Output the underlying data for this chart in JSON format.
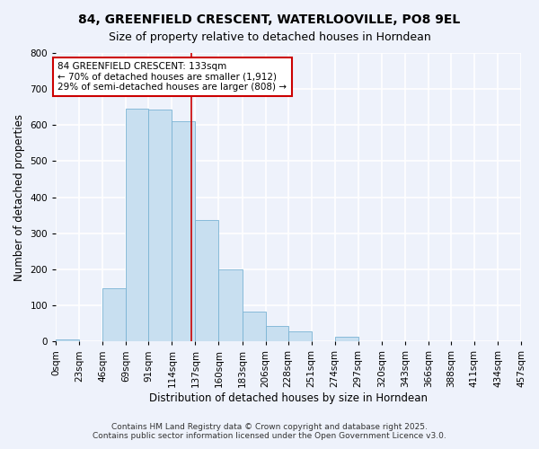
{
  "title": "84, GREENFIELD CRESCENT, WATERLOOVILLE, PO8 9EL",
  "subtitle": "Size of property relative to detached houses in Horndean",
  "xlabel": "Distribution of detached houses by size in Horndean",
  "ylabel": "Number of detached properties",
  "bar_edges": [
    0,
    23,
    46,
    69,
    91,
    114,
    137,
    160,
    183,
    206,
    228,
    251,
    274,
    297,
    320,
    343,
    366,
    388,
    411,
    434,
    457
  ],
  "bar_heights": [
    5,
    0,
    148,
    645,
    643,
    612,
    338,
    200,
    83,
    43,
    27,
    0,
    12,
    0,
    0,
    0,
    0,
    0,
    0,
    0
  ],
  "bar_color": "#c8dff0",
  "bar_edge_color": "#7ab3d4",
  "vline_x": 133,
  "vline_color": "#cc0000",
  "ylim": [
    0,
    800
  ],
  "yticks": [
    0,
    100,
    200,
    300,
    400,
    500,
    600,
    700,
    800
  ],
  "xtick_labels": [
    "0sqm",
    "23sqm",
    "46sqm",
    "69sqm",
    "91sqm",
    "114sqm",
    "137sqm",
    "160sqm",
    "183sqm",
    "206sqm",
    "228sqm",
    "251sqm",
    "274sqm",
    "297sqm",
    "320sqm",
    "343sqm",
    "366sqm",
    "388sqm",
    "411sqm",
    "434sqm",
    "457sqm"
  ],
  "annotation_title": "84 GREENFIELD CRESCENT: 133sqm",
  "annotation_line1": "← 70% of detached houses are smaller (1,912)",
  "annotation_line2": "29% of semi-detached houses are larger (808) →",
  "annotation_box_color": "#ffffff",
  "annotation_border_color": "#cc0000",
  "footnote1": "Contains HM Land Registry data © Crown copyright and database right 2025.",
  "footnote2": "Contains public sector information licensed under the Open Government Licence v3.0.",
  "background_color": "#eef2fb",
  "grid_color": "#ffffff",
  "title_fontsize": 10,
  "subtitle_fontsize": 9,
  "axis_label_fontsize": 8.5,
  "tick_fontsize": 7.5,
  "annotation_fontsize": 7.5,
  "footnote_fontsize": 6.5
}
